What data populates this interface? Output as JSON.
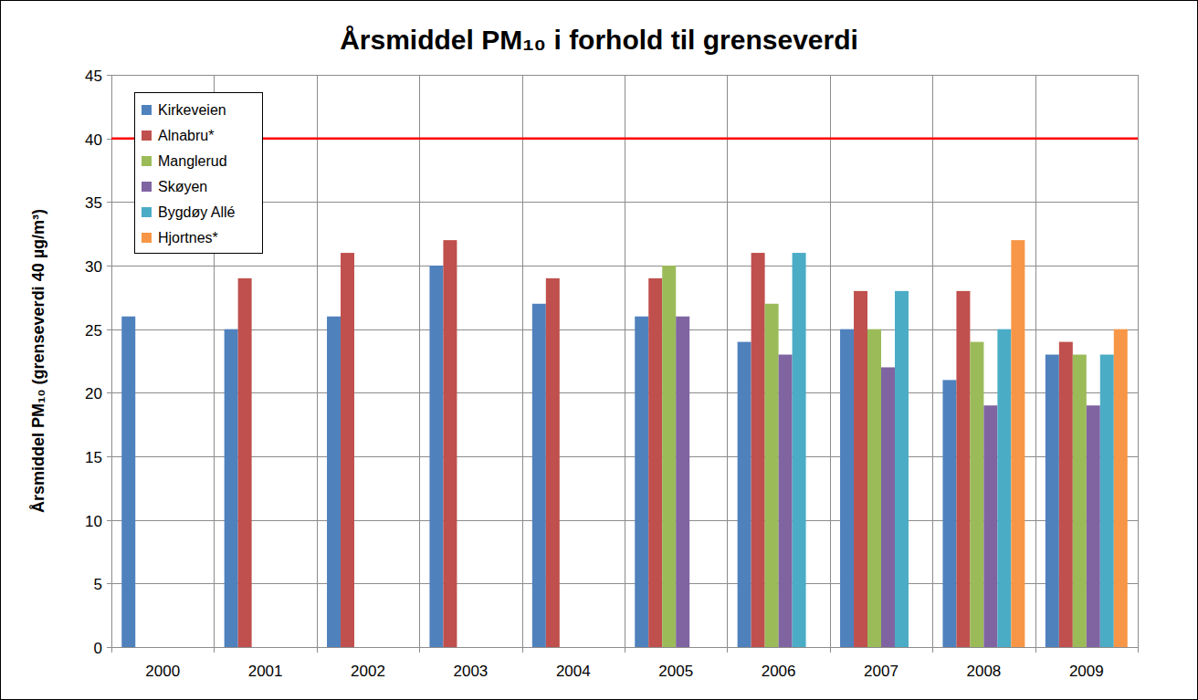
{
  "chart_data": {
    "type": "bar",
    "title": "Årsmiddel PM₁₀ i forhold til grenseverdi",
    "y_label": "Årsmiddel PM₁₀ (grenseverdi 40 µg/m³)",
    "categories": [
      "2000",
      "2001",
      "2002",
      "2003",
      "2004",
      "2005",
      "2006",
      "2007",
      "2008",
      "2009"
    ],
    "series": [
      {
        "name": "Kirkeveien",
        "color": "#4f81bd",
        "values": [
          26,
          25,
          26,
          30,
          27,
          26,
          24,
          25,
          21,
          23
        ]
      },
      {
        "name": "Alnabru*",
        "color": "#c0504d",
        "values": [
          null,
          29,
          31,
          32,
          29,
          29,
          31,
          28,
          28,
          24
        ]
      },
      {
        "name": "Manglerud",
        "color": "#9bbb59",
        "values": [
          null,
          null,
          null,
          null,
          null,
          30,
          27,
          25,
          24,
          23
        ]
      },
      {
        "name": "Skøyen",
        "color": "#8064a2",
        "values": [
          null,
          null,
          null,
          null,
          null,
          26,
          23,
          22,
          19,
          19
        ]
      },
      {
        "name": "Bygdøy Allé",
        "color": "#4bacc6",
        "values": [
          null,
          null,
          null,
          null,
          null,
          null,
          31,
          28,
          25,
          23
        ]
      },
      {
        "name": "Hjortnes*",
        "color": "#f79646",
        "values": [
          null,
          null,
          null,
          null,
          null,
          null,
          null,
          null,
          32,
          25
        ]
      }
    ],
    "reference_line": {
      "value": 40,
      "color": "#ff0000"
    },
    "ylim": [
      0,
      45
    ],
    "yticks": [
      0,
      5,
      10,
      15,
      20,
      25,
      30,
      35,
      40,
      45
    ],
    "grid": true,
    "legend": "top-left"
  }
}
